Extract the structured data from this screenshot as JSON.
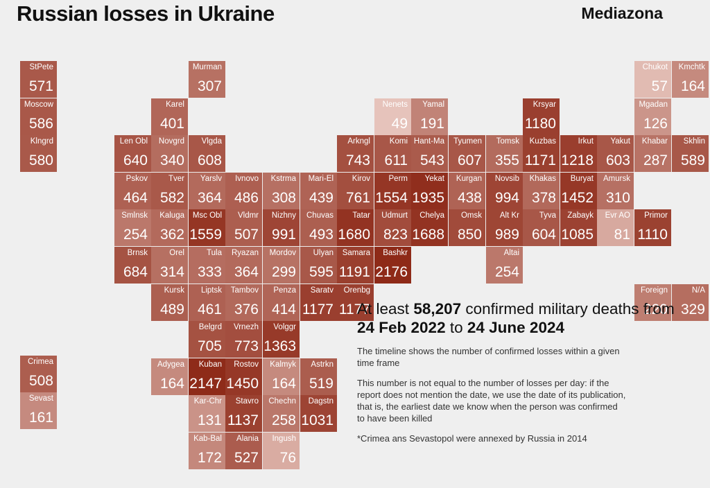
{
  "header": {
    "title": "Russian losses in Ukraine",
    "brand": "Mediazona"
  },
  "info": {
    "headline_prefix": "At least",
    "headline_total": "58,207",
    "headline_mid": "confirmed military deaths from",
    "headline_from": "24 Feb 2022",
    "headline_to_word": "to",
    "headline_to": "24 June 2024",
    "note_timeline": "The timeline shows the number of confirmed losses within a given time frame",
    "note_daily": "This number is not equal to the number of losses per day: if the report does not mention the date, we use the date of its publication, that is, the earliest date we know when the person was confirmed to have been killed",
    "note_crimea": "*Crimea ans Sevastopol were annexed by Russia in 2014"
  },
  "colors": {
    "background": "#efefef",
    "scale_low": "#efd3cc",
    "scale_high": "#8e2a18"
  },
  "regions": [
    {
      "label": "StPete",
      "value": 571
    },
    {
      "label": "Moscow",
      "value": 586
    },
    {
      "label": "Klngrd",
      "value": 580
    },
    {
      "label": "Murman",
      "value": 307
    },
    {
      "label": "Karel",
      "value": 401
    },
    {
      "label": "Len Obl",
      "value": 640
    },
    {
      "label": "Novgrd",
      "value": 340
    },
    {
      "label": "Vlgda",
      "value": 608
    },
    {
      "label": "Pskov",
      "value": 464
    },
    {
      "label": "Tver",
      "value": 582
    },
    {
      "label": "Yarslv",
      "value": 364
    },
    {
      "label": "Ivnovo",
      "value": 486
    },
    {
      "label": "Kstrma",
      "value": 308
    },
    {
      "label": "Mari-El",
      "value": 439
    },
    {
      "label": "Smlnsk",
      "value": 254
    },
    {
      "label": "Kaluga",
      "value": 362
    },
    {
      "label": "Msc Obl",
      "value": 1559
    },
    {
      "label": "Vldmr",
      "value": 507
    },
    {
      "label": "Nizhny",
      "value": 991
    },
    {
      "label": "Chuvas",
      "value": 493
    },
    {
      "label": "Brnsk",
      "value": 684
    },
    {
      "label": "Orel",
      "value": 314
    },
    {
      "label": "Tula",
      "value": 333
    },
    {
      "label": "Ryazan",
      "value": 364
    },
    {
      "label": "Mordov",
      "value": 299
    },
    {
      "label": "Ulyan",
      "value": 595
    },
    {
      "label": "Kursk",
      "value": 489
    },
    {
      "label": "Liptsk",
      "value": 461
    },
    {
      "label": "Tambov",
      "value": 376
    },
    {
      "label": "Penza",
      "value": 414
    },
    {
      "label": "Saratv",
      "value": 1177
    },
    {
      "label": "Orenbg",
      "value": 1177
    },
    {
      "label": "Belgrd",
      "value": 705
    },
    {
      "label": "Vrnezh",
      "value": 773
    },
    {
      "label": "Volggr",
      "value": 1363
    },
    {
      "label": "Crimea",
      "value": 508
    },
    {
      "label": "Sevast",
      "value": 161
    },
    {
      "label": "Adygea",
      "value": 164
    },
    {
      "label": "Kuban",
      "value": 2147
    },
    {
      "label": "Rostov",
      "value": 1450
    },
    {
      "label": "Kalmyk",
      "value": 164
    },
    {
      "label": "Astrkn",
      "value": 519
    },
    {
      "label": "Kar-Chr",
      "value": 131
    },
    {
      "label": "Stavro",
      "value": 1137
    },
    {
      "label": "Chechn",
      "value": 258
    },
    {
      "label": "Dagstn",
      "value": 1031
    },
    {
      "label": "Kab-Bal",
      "value": 172
    },
    {
      "label": "Alania",
      "value": 527
    },
    {
      "label": "Ingush",
      "value": 76
    },
    {
      "label": "Nenets",
      "value": 49
    },
    {
      "label": "Yamal",
      "value": 191
    },
    {
      "label": "Arkngl",
      "value": 743
    },
    {
      "label": "Komi",
      "value": 611
    },
    {
      "label": "Hant-Ma",
      "value": 543
    },
    {
      "label": "Tyumen",
      "value": 607
    },
    {
      "label": "Tomsk",
      "value": 355
    },
    {
      "label": "Kirov",
      "value": 761
    },
    {
      "label": "Perm",
      "value": 1554
    },
    {
      "label": "Yekat",
      "value": 1935
    },
    {
      "label": "Kurgan",
      "value": 438
    },
    {
      "label": "Novsib",
      "value": 994
    },
    {
      "label": "Tatar",
      "value": 1680
    },
    {
      "label": "Udmurt",
      "value": 823
    },
    {
      "label": "Chelya",
      "value": 1688
    },
    {
      "label": "Omsk",
      "value": 850
    },
    {
      "label": "Alt Kr",
      "value": 989
    },
    {
      "label": "Samara",
      "value": 1191
    },
    {
      "label": "Bashkr",
      "value": 2176
    },
    {
      "label": "Altai",
      "value": 254
    },
    {
      "label": "Krsyar",
      "value": 1180
    },
    {
      "label": "Kuzbas",
      "value": 1171
    },
    {
      "label": "Irkut",
      "value": 1218
    },
    {
      "label": "Yakut",
      "value": 603
    },
    {
      "label": "Khakas",
      "value": 378
    },
    {
      "label": "Buryat",
      "value": 1452
    },
    {
      "label": "Amursk",
      "value": 310
    },
    {
      "label": "Tyva",
      "value": 604
    },
    {
      "label": "Zabayk",
      "value": 1085
    },
    {
      "label": "Evr AO",
      "value": 81
    },
    {
      "label": "Chukot",
      "value": 57
    },
    {
      "label": "Kmchtk",
      "value": 164
    },
    {
      "label": "Mgadan",
      "value": 126
    },
    {
      "label": "Khabar",
      "value": 287
    },
    {
      "label": "Skhlin",
      "value": 589
    },
    {
      "label": "Primor",
      "value": 1110
    },
    {
      "label": "Foreign",
      "value": 220
    },
    {
      "label": "N/A",
      "value": 329
    }
  ]
}
